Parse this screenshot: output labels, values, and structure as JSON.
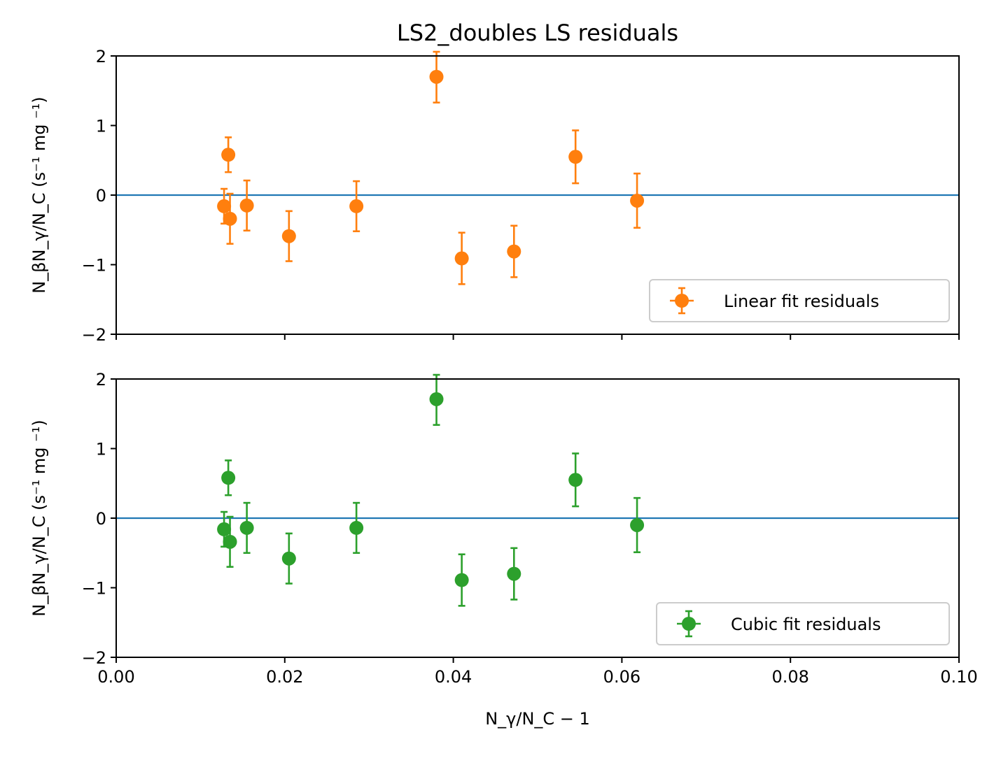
{
  "chart_data": {
    "title": "LS2_doubles LS residuals",
    "xlabel": "N_γ/N_C − 1",
    "ylabel": "N_βN_γ/N_C (s⁻¹ mg ⁻¹)",
    "shared_x": true,
    "xlim": [
      0,
      0.1
    ],
    "xticks": [
      0.0,
      0.02,
      0.04,
      0.06,
      0.08,
      0.1
    ],
    "xtick_labels": [
      "0.00",
      "0.02",
      "0.04",
      "0.06",
      "0.08",
      "0.10"
    ],
    "subplots": [
      {
        "type": "scatter",
        "ylim": [
          -2,
          2
        ],
        "yticks": [
          -2,
          -1,
          0,
          1,
          2
        ],
        "ytick_labels": [
          "−2",
          "−1",
          "0",
          "1",
          "2"
        ],
        "reference_line": {
          "y": 0,
          "color": "#1f77b4"
        },
        "legend_location": "lower right",
        "series": [
          {
            "name": "Linear fit residuals",
            "color": "#ff7f0e",
            "x": [
              0.0128,
              0.0133,
              0.0135,
              0.0155,
              0.0205,
              0.0285,
              0.038,
              0.041,
              0.0472,
              0.0545,
              0.0618
            ],
            "y": [
              -0.16,
              0.58,
              -0.34,
              -0.15,
              -0.59,
              -0.16,
              1.7,
              -0.91,
              -0.81,
              0.55,
              -0.08
            ],
            "yerr": [
              0.25,
              0.25,
              0.36,
              0.36,
              0.36,
              0.36,
              0.37,
              0.37,
              0.37,
              0.38,
              0.39
            ]
          }
        ]
      },
      {
        "type": "scatter",
        "ylim": [
          -2,
          2
        ],
        "yticks": [
          -2,
          -1,
          0,
          1,
          2
        ],
        "ytick_labels": [
          "−2",
          "−1",
          "0",
          "1",
          "2"
        ],
        "reference_line": {
          "y": 0,
          "color": "#1f77b4"
        },
        "legend_location": "lower right",
        "series": [
          {
            "name": "Cubic fit residuals",
            "color": "#2ca02c",
            "x": [
              0.0128,
              0.0133,
              0.0135,
              0.0155,
              0.0205,
              0.0285,
              0.038,
              0.041,
              0.0472,
              0.0545,
              0.0618
            ],
            "y": [
              -0.16,
              0.58,
              -0.34,
              -0.14,
              -0.58,
              -0.14,
              1.71,
              -0.89,
              -0.8,
              0.55,
              -0.1
            ],
            "yerr": [
              0.25,
              0.25,
              0.36,
              0.36,
              0.36,
              0.36,
              0.37,
              0.37,
              0.37,
              0.38,
              0.39
            ]
          }
        ]
      }
    ]
  }
}
